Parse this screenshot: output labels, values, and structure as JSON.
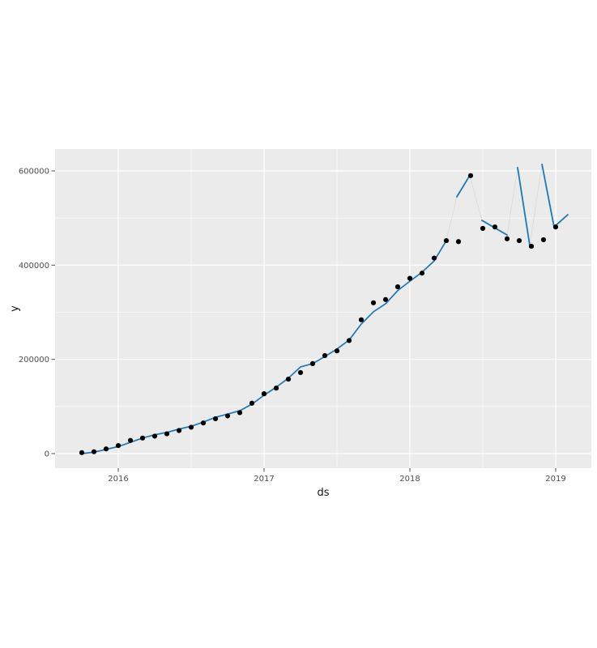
{
  "figure": {
    "background_color": "#ffffff",
    "panel_background_color": "#ebebeb",
    "grid_color": "#ffffff",
    "point_color": "#000000",
    "line_color": "#1f77b4",
    "connector_color": "#d6d6d6",
    "tick_color": "#4d4d4d",
    "tick_label_color": "#4d4d4d",
    "axis_title_color": "#111111"
  },
  "chart_data": {
    "type": "scatter",
    "title": "",
    "xlabel": "ds",
    "ylabel": "y",
    "grid": true,
    "legend_position": "none",
    "x_tick_labels": [
      "2016",
      "2017",
      "2018",
      "2019"
    ],
    "x_tick_values": [
      2016,
      2017,
      2018,
      2019
    ],
    "x_minor_tick_values": [
      2016.5,
      2017.5,
      2018.5
    ],
    "y_tick_labels": [
      "0",
      "200000",
      "400000",
      "600000"
    ],
    "y_tick_values": [
      0,
      200000,
      400000,
      600000
    ],
    "y_minor_tick_values": [
      100000,
      300000,
      500000
    ],
    "xlim_decimal_years": [
      2015.567,
      2019.244
    ],
    "ylim": [
      -31000,
      646000
    ],
    "series": [
      {
        "name": "actual-points",
        "type": "points",
        "color": "#000000",
        "data": [
          [
            "2015-10",
            2000
          ],
          [
            "2015-11",
            4000
          ],
          [
            "2015-12",
            10000
          ],
          [
            "2016-01",
            17000
          ],
          [
            "2016-02",
            28000
          ],
          [
            "2016-03",
            33000
          ],
          [
            "2016-04",
            37000
          ],
          [
            "2016-05",
            42000
          ],
          [
            "2016-06",
            49000
          ],
          [
            "2016-07",
            56000
          ],
          [
            "2016-08",
            65000
          ],
          [
            "2016-09",
            74000
          ],
          [
            "2016-10",
            80000
          ],
          [
            "2016-11",
            87000
          ],
          [
            "2016-12",
            107000
          ],
          [
            "2017-01",
            127000
          ],
          [
            "2017-02",
            139000
          ],
          [
            "2017-03",
            158000
          ],
          [
            "2017-04",
            172000
          ],
          [
            "2017-05",
            191000
          ],
          [
            "2017-06",
            208000
          ],
          [
            "2017-07",
            218000
          ],
          [
            "2017-08",
            240000
          ],
          [
            "2017-09",
            284000
          ],
          [
            "2017-10",
            320000
          ],
          [
            "2017-11",
            327000
          ],
          [
            "2017-12",
            354000
          ],
          [
            "2018-01",
            372000
          ],
          [
            "2018-02",
            383000
          ],
          [
            "2018-03",
            415000
          ],
          [
            "2018-04",
            452000
          ],
          [
            "2018-05",
            450000
          ],
          [
            "2018-06",
            590000
          ],
          [
            "2018-07",
            478000
          ],
          [
            "2018-08",
            481000
          ],
          [
            "2018-09",
            456000
          ],
          [
            "2018-10",
            452000
          ],
          [
            "2018-11",
            440000
          ],
          [
            "2018-12",
            454000
          ],
          [
            "2019-01",
            481000
          ]
        ]
      },
      {
        "name": "fitted-line",
        "type": "line",
        "color": "#1f77b4",
        "data": [
          [
            "2015-10",
            0
          ],
          [
            "2015-11",
            3000
          ],
          [
            "2015-12",
            9000
          ],
          [
            "2016-01",
            15000
          ],
          [
            "2016-02",
            24000
          ],
          [
            "2016-03",
            33000
          ],
          [
            "2016-04",
            40000
          ],
          [
            "2016-05",
            45000
          ],
          [
            "2016-06",
            52000
          ],
          [
            "2016-07",
            58000
          ],
          [
            "2016-08",
            67000
          ],
          [
            "2016-09",
            77000
          ],
          [
            "2016-10",
            84000
          ],
          [
            "2016-11",
            91000
          ],
          [
            "2016-12",
            105000
          ],
          [
            "2017-01",
            124000
          ],
          [
            "2017-02",
            141000
          ],
          [
            "2017-03",
            160000
          ],
          [
            "2017-04",
            184000
          ],
          [
            "2017-05",
            191000
          ],
          [
            "2017-06",
            206000
          ],
          [
            "2017-07",
            222000
          ],
          [
            "2017-08",
            241000
          ],
          [
            "2017-09",
            275000
          ],
          [
            "2017-10",
            301000
          ],
          [
            "2017-11",
            318000
          ],
          [
            "2017-12",
            346000
          ],
          [
            "2018-01",
            366000
          ],
          [
            "2018-02",
            385000
          ],
          [
            "2018-03",
            409000
          ],
          [
            "2018-04",
            452000
          ]
        ]
      },
      {
        "name": "forecast-segments",
        "type": "line-segments",
        "color": "#1f77b4",
        "segments": [
          [
            [
              2018.322,
              545000
            ],
            [
              2018.41,
              590000
            ]
          ],
          [
            [
              2018.494,
              495000
            ],
            [
              2018.667,
              464000
            ]
          ],
          [
            [
              2018.739,
              607000
            ],
            [
              2018.822,
              442000
            ]
          ],
          [
            [
              2018.906,
              614000
            ],
            [
              2018.989,
              481000
            ],
            [
              2019.083,
              507000
            ]
          ]
        ]
      },
      {
        "name": "segment-connectors",
        "type": "line-segments",
        "color": "#d6d6d6",
        "segments": [
          [
            [
              2018.25,
              452000
            ],
            [
              2018.322,
              545000
            ]
          ],
          [
            [
              2018.41,
              590000
            ],
            [
              2018.494,
              495000
            ]
          ],
          [
            [
              2018.667,
              464000
            ],
            [
              2018.739,
              607000
            ]
          ],
          [
            [
              2018.822,
              442000
            ],
            [
              2018.906,
              614000
            ]
          ]
        ]
      }
    ]
  }
}
